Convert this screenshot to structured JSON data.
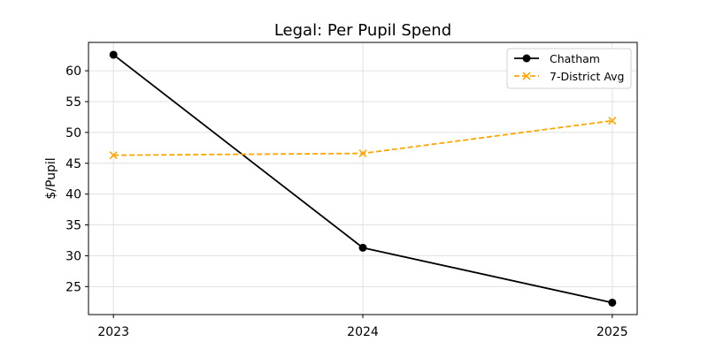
{
  "chart_data": {
    "type": "line",
    "title": "Legal: Per Pupil Spend",
    "xlabel": "",
    "ylabel": "$/Pupil",
    "x": [
      2023,
      2024,
      2025
    ],
    "xticks": [
      "2023",
      "2024",
      "2025"
    ],
    "yticks": [
      25,
      30,
      35,
      40,
      45,
      50,
      55,
      60
    ],
    "xlim": [
      2022.9,
      2025.1
    ],
    "ylim": [
      20.46,
      64.6
    ],
    "grid": true,
    "legend": "top-right",
    "series": [
      {
        "name": "Chatham",
        "values": [
          62.6,
          31.3,
          22.4
        ],
        "color": "#000000",
        "style": "solid",
        "marker": "circle"
      },
      {
        "name": "7-District Avg",
        "values": [
          46.3,
          46.6,
          51.9
        ],
        "color": "#FFA500",
        "style": "dashed",
        "marker": "x"
      }
    ]
  }
}
